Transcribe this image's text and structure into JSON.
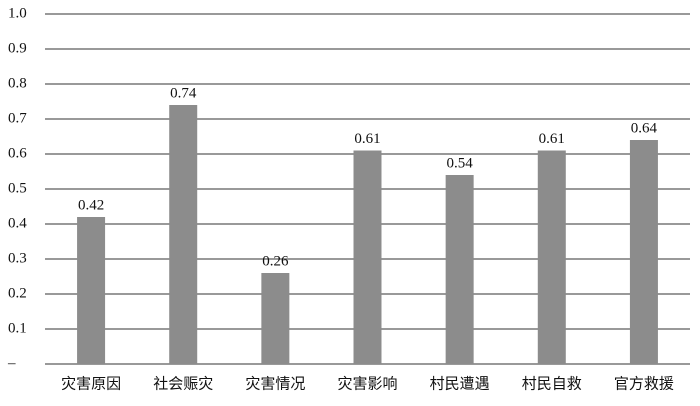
{
  "chart_data": {
    "type": "bar",
    "categories": [
      "灾害原因",
      "社会赈灾",
      "灾害情况",
      "灾害影响",
      "村民遭遇",
      "村民自救",
      "官方救援"
    ],
    "values": [
      0.42,
      0.74,
      0.26,
      0.61,
      0.54,
      0.61,
      0.64
    ],
    "color": "#8c8c8c",
    "ylim": [
      0,
      1
    ],
    "yticks": [
      {
        "value": 0,
        "label": "–"
      },
      0.1,
      0.2,
      0.3,
      0.4,
      0.5,
      0.6,
      0.7,
      0.8,
      0.9,
      {
        "value": 1,
        "label": "1.0"
      }
    ],
    "grid": true
  }
}
